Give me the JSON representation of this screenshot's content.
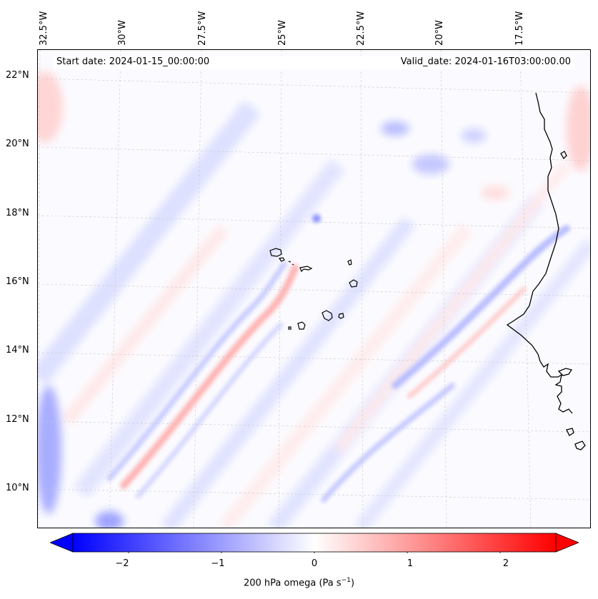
{
  "map": {
    "field": "200 hPa omega",
    "units_label": "200 hPa omega (Pa s",
    "units_sup": "−1",
    "units_close": ")",
    "start_date": "Start date: 2024-01-15_00:00:00",
    "valid_date": "Valid_date: 2024-01-16T03:00:00.00",
    "lon_labels": [
      "32.5°W",
      "30°W",
      "27.5°W",
      "25°W",
      "22.5°W",
      "20°W",
      "17.5°W"
    ],
    "lat_labels": [
      "22°N",
      "20°N",
      "18°N",
      "16°N",
      "14°N",
      "12°N",
      "10°N"
    ],
    "features": [
      "Cabo Verde islands",
      "West African coastline"
    ],
    "colors": {
      "negative": "#0000ff",
      "zero": "#ffffff",
      "positive": "#ff0000",
      "coast": "#000000"
    }
  },
  "colorbar": {
    "min": -2.6,
    "max": 2.6,
    "ticks": [
      "−2",
      "−1",
      "0",
      "1",
      "2"
    ],
    "tick_values": [
      -2,
      -1,
      0,
      1,
      2
    ],
    "extend": "both",
    "cmap": "bwr"
  }
}
